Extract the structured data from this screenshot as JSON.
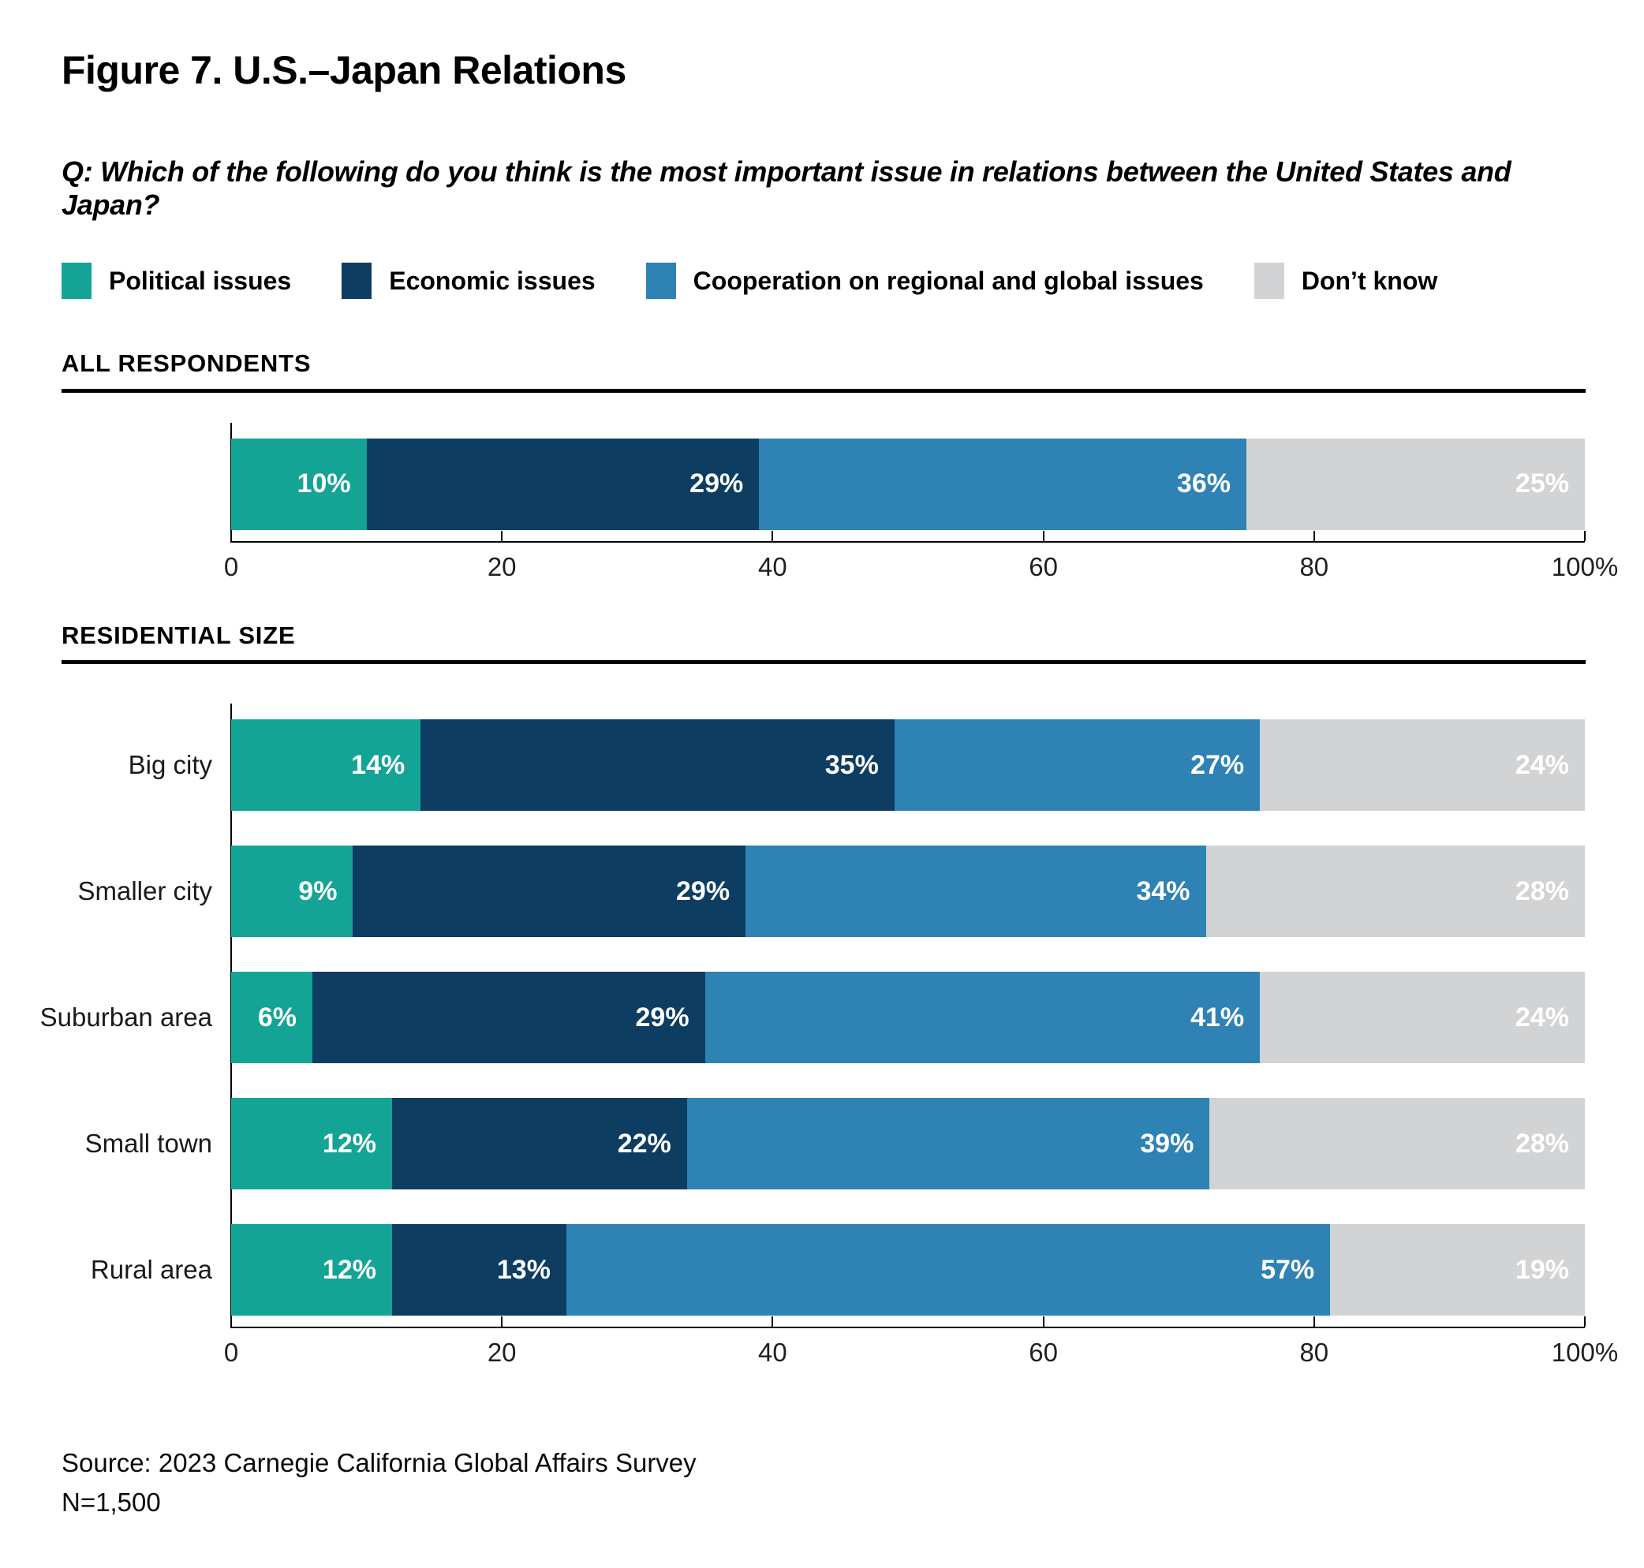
{
  "title": "Figure 7. U.S.–Japan Relations",
  "question": "Q: Which of the following do you think is the most important issue in relations between the United States and Japan?",
  "legend": [
    {
      "label": "Political issues",
      "color": "#14A496"
    },
    {
      "label": "Economic issues",
      "color": "#0D3D61"
    },
    {
      "label": "Cooperation on regional and global issues",
      "color": "#2E82B4"
    },
    {
      "label": "Don’t know",
      "color": "#D2D3D4"
    }
  ],
  "sections": [
    {
      "heading": "ALL RESPONDENTS",
      "rows": [
        {
          "label": "",
          "values": [
            10,
            29,
            36,
            25
          ]
        }
      ]
    },
    {
      "heading": "RESIDENTIAL SIZE",
      "rows": [
        {
          "label": "Big city",
          "values": [
            14,
            35,
            27,
            24
          ]
        },
        {
          "label": "Smaller city",
          "values": [
            9,
            29,
            34,
            28
          ]
        },
        {
          "label": "Suburban area",
          "values": [
            6,
            29,
            41,
            24
          ]
        },
        {
          "label": "Small town",
          "values": [
            12,
            22,
            39,
            28
          ]
        },
        {
          "label": "Rural area",
          "values": [
            12,
            13,
            57,
            19
          ]
        }
      ]
    }
  ],
  "axis": {
    "tick_values": [
      0,
      20,
      40,
      60,
      80,
      100
    ],
    "tick_labels": [
      "0",
      "20",
      "40",
      "60",
      "80",
      "100%"
    ],
    "max": 100
  },
  "source": "Source: 2023 Carnegie California Global Affairs Survey",
  "sample_size": "N=1,500",
  "chart_data": {
    "type": "bar",
    "orientation": "horizontal",
    "stacked": true,
    "unit": "%",
    "title": "Figure 7. U.S.–Japan Relations",
    "subtitle": "Q: Which of the following do you think is the most important issue in relations between the United States and Japan?",
    "series_names": [
      "Political issues",
      "Economic issues",
      "Cooperation on regional and global issues",
      "Don’t know"
    ],
    "series_colors": [
      "#14A496",
      "#0D3D61",
      "#2E82B4",
      "#D2D3D4"
    ],
    "groups": [
      {
        "heading": "ALL RESPONDENTS",
        "categories": [
          "All respondents"
        ],
        "data": [
          [
            10,
            29,
            36,
            25
          ]
        ]
      },
      {
        "heading": "RESIDENTIAL SIZE",
        "categories": [
          "Big city",
          "Smaller city",
          "Suburban area",
          "Small town",
          "Rural area"
        ],
        "data": [
          [
            14,
            35,
            27,
            24
          ],
          [
            9,
            29,
            34,
            28
          ],
          [
            6,
            29,
            41,
            24
          ],
          [
            12,
            22,
            39,
            28
          ],
          [
            12,
            13,
            57,
            19
          ]
        ]
      }
    ],
    "xlim": [
      0,
      100
    ],
    "x_ticks": [
      0,
      20,
      40,
      60,
      80,
      100
    ],
    "grid": false,
    "legend_position": "top",
    "source": "Source: 2023 Carnegie California Global Affairs Survey",
    "n": "N=1,500"
  }
}
